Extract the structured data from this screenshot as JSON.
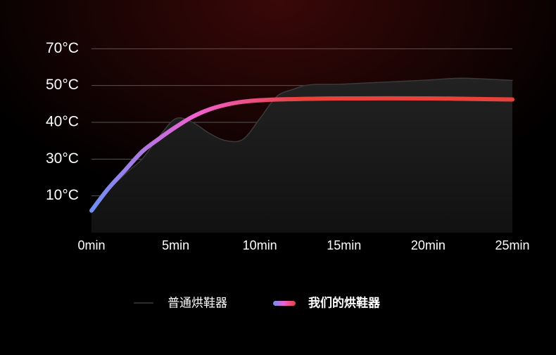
{
  "chart_data": {
    "type": "line",
    "x": [
      0,
      1,
      2,
      3,
      4,
      5,
      6,
      7,
      8,
      9,
      10,
      11,
      12,
      13,
      15,
      20,
      22,
      25
    ],
    "series": [
      {
        "name": "普通烘鞋器",
        "color": "#3a3a3a",
        "fill": "#161616",
        "values": [
          6,
          13,
          22,
          30,
          36,
          41,
          40,
          37,
          35,
          35.4,
          41,
          47,
          49,
          50.4,
          50.8,
          53,
          54,
          52.8
        ]
      },
      {
        "name": "我们的烘鞋器",
        "color": "#e8403a",
        "gradient": [
          "#6f8ff5",
          "#f060d0",
          "#e8403a"
        ],
        "values": [
          6,
          14,
          24,
          32,
          35.5,
          38.7,
          41.5,
          43.5,
          44.8,
          45.6,
          46,
          46.2,
          46.3,
          46.4,
          46.5,
          46.5,
          46.4,
          46.2
        ]
      }
    ],
    "xlim": [
      0,
      25
    ],
    "xticks": [
      {
        "value": 0,
        "label": "0min"
      },
      {
        "value": 5,
        "label": "5min"
      },
      {
        "value": 10,
        "label": "10min"
      },
      {
        "value": 15,
        "label": "15min"
      },
      {
        "value": 20,
        "label": "20min"
      },
      {
        "value": 25,
        "label": "25min"
      }
    ],
    "ylim": [
      0,
      80
    ],
    "yticks": [
      {
        "value": 10,
        "label": "10°C"
      },
      {
        "value": 30,
        "label": "30°C"
      },
      {
        "value": 40,
        "label": "40°C"
      },
      {
        "value": 50,
        "label": "50°C"
      },
      {
        "value": 70,
        "label": "70°C"
      }
    ],
    "grid": true
  }
}
